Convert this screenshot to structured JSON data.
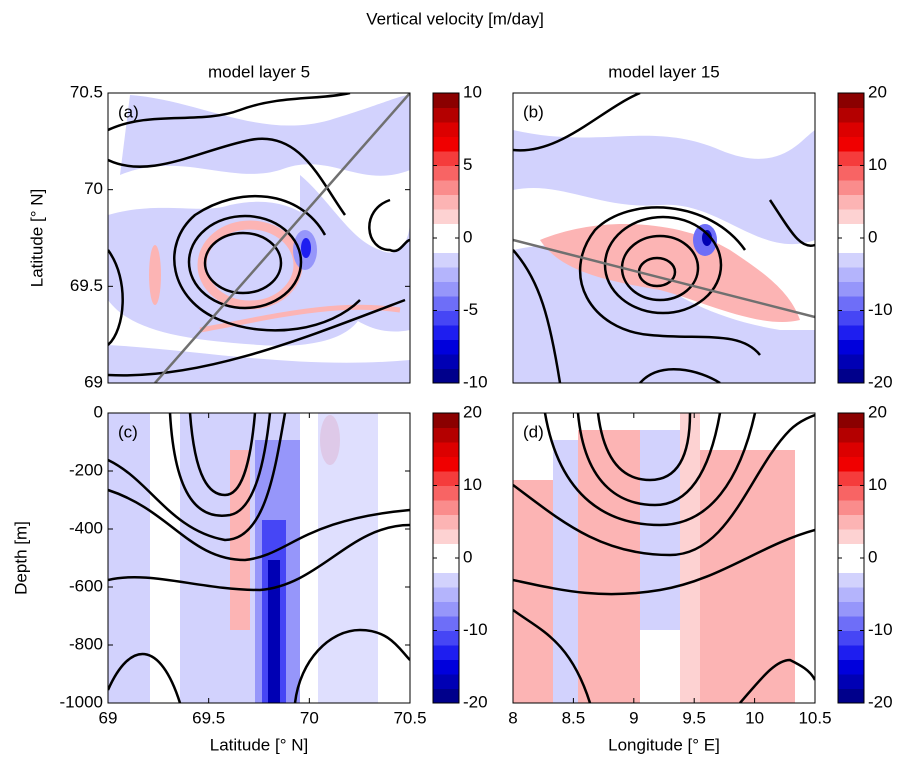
{
  "title": "Vertical velocity [m/day]",
  "colormap": [
    "#00008b",
    "#0000b4",
    "#0000dc",
    "#1e1ef0",
    "#4646f5",
    "#6e6ef8",
    "#9696fa",
    "#b4b4fc",
    "#d2d2fd",
    "#ffffff",
    "#ffffff",
    "#fdd2d2",
    "#fcb4b4",
    "#fa8c8c",
    "#f86464",
    "#f53c3c",
    "#f00000",
    "#dc0000",
    "#b40000",
    "#8b0000"
  ],
  "chart_data": [
    {
      "type": "contour",
      "title": "model layer 5",
      "label": "(a)",
      "ylabel": "Latitude [° N]",
      "ylim": [
        69,
        70.5
      ],
      "yticks": [
        69,
        69.5,
        70,
        70.5
      ],
      "clim": [
        -10,
        10
      ],
      "cticks": [
        -10,
        -5,
        0,
        5,
        10
      ]
    },
    {
      "type": "contour",
      "title": "model layer 15",
      "label": "(b)",
      "clim": [
        -20,
        20
      ],
      "cticks": [
        -20,
        -10,
        0,
        10,
        20
      ]
    },
    {
      "type": "contour",
      "label": "(c)",
      "ylabel": "Depth [m]",
      "xlabel": "Latitude [° N]",
      "xlim": [
        69,
        70.5
      ],
      "xticks": [
        69,
        69.5,
        70,
        70.5
      ],
      "ylim": [
        -1000,
        0
      ],
      "yticks": [
        -1000,
        -800,
        -600,
        -400,
        -200,
        0
      ],
      "clim": [
        -20,
        20
      ],
      "cticks": [
        -20,
        -10,
        0,
        10,
        20
      ]
    },
    {
      "type": "contour",
      "label": "(d)",
      "xlabel": "Longitude [° E]",
      "xlim": [
        8,
        10.5
      ],
      "xticks": [
        8,
        8.5,
        9,
        9.5,
        10,
        10.5
      ],
      "clim": [
        -20,
        20
      ],
      "cticks": [
        -20,
        -10,
        0,
        10,
        20
      ]
    }
  ]
}
